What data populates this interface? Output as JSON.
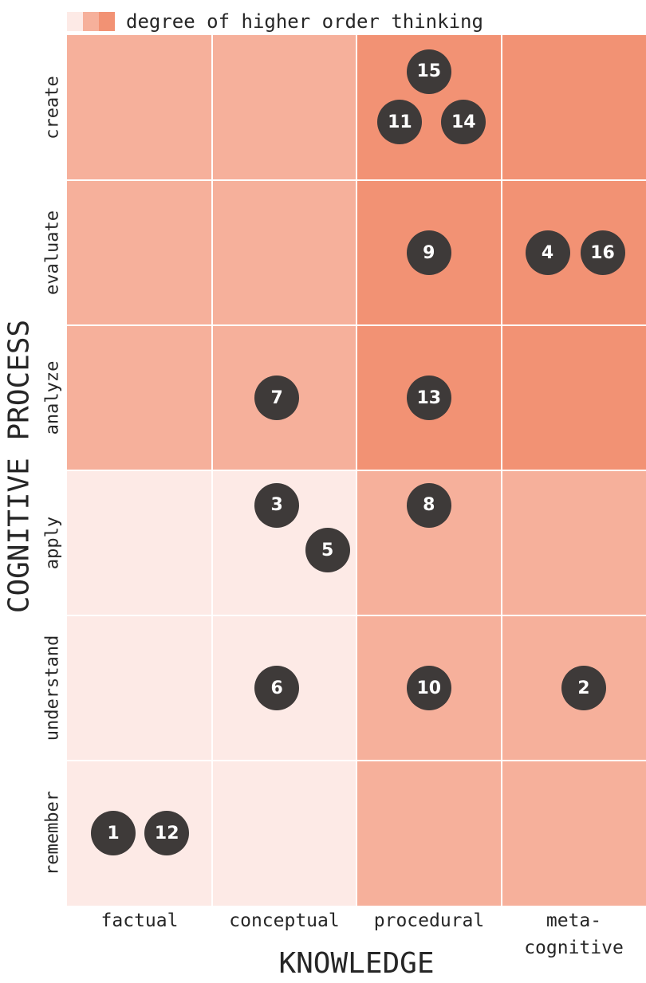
{
  "legend": {
    "label": "degree of higher order thinking",
    "swatches": [
      "#fdeae6",
      "#f6b09b",
      "#f29274"
    ]
  },
  "chart_data": {
    "type": "heatmap",
    "xlabel": "KNOWLEDGE",
    "ylabel": "COGNITIVE PROCESS",
    "columns": [
      "factual",
      "conceptual",
      "procedural",
      "meta-\ncognitive"
    ],
    "rows": [
      "create",
      "evaluate",
      "analyze",
      "apply",
      "understand",
      "remember"
    ],
    "levels": [
      [
        2,
        2,
        3,
        3
      ],
      [
        2,
        2,
        3,
        3
      ],
      [
        2,
        2,
        3,
        3
      ],
      [
        1,
        1,
        2,
        2
      ],
      [
        1,
        1,
        2,
        2
      ],
      [
        1,
        1,
        2,
        2
      ]
    ],
    "level_colors": {
      "1": "#fdeae6",
      "2": "#f6b09b",
      "3": "#f29274"
    },
    "points": [
      {
        "label": "15",
        "row": "create",
        "col": "procedural",
        "x": 0.5,
        "y": 0.25
      },
      {
        "label": "11",
        "row": "create",
        "col": "procedural",
        "x": 0.3,
        "y": 0.6
      },
      {
        "label": "14",
        "row": "create",
        "col": "procedural",
        "x": 0.74,
        "y": 0.6
      },
      {
        "label": "9",
        "row": "evaluate",
        "col": "procedural",
        "x": 0.5,
        "y": 0.5
      },
      {
        "label": "4",
        "row": "evaluate",
        "col": "meta-\ncognitive",
        "x": 0.32,
        "y": 0.5
      },
      {
        "label": "16",
        "row": "evaluate",
        "col": "meta-\ncognitive",
        "x": 0.7,
        "y": 0.5
      },
      {
        "label": "7",
        "row": "analyze",
        "col": "conceptual",
        "x": 0.45,
        "y": 0.5
      },
      {
        "label": "13",
        "row": "analyze",
        "col": "procedural",
        "x": 0.5,
        "y": 0.5
      },
      {
        "label": "3",
        "row": "apply",
        "col": "conceptual",
        "x": 0.45,
        "y": 0.24
      },
      {
        "label": "5",
        "row": "apply",
        "col": "conceptual",
        "x": 0.8,
        "y": 0.55
      },
      {
        "label": "8",
        "row": "apply",
        "col": "procedural",
        "x": 0.5,
        "y": 0.24
      },
      {
        "label": "6",
        "row": "understand",
        "col": "conceptual",
        "x": 0.45,
        "y": 0.5
      },
      {
        "label": "10",
        "row": "understand",
        "col": "procedural",
        "x": 0.5,
        "y": 0.5
      },
      {
        "label": "2",
        "row": "understand",
        "col": "meta-\ncognitive",
        "x": 0.57,
        "y": 0.5
      },
      {
        "label": "1",
        "row": "remember",
        "col": "factual",
        "x": 0.32,
        "y": 0.5
      },
      {
        "label": "12",
        "row": "remember",
        "col": "factual",
        "x": 0.69,
        "y": 0.5
      }
    ]
  }
}
